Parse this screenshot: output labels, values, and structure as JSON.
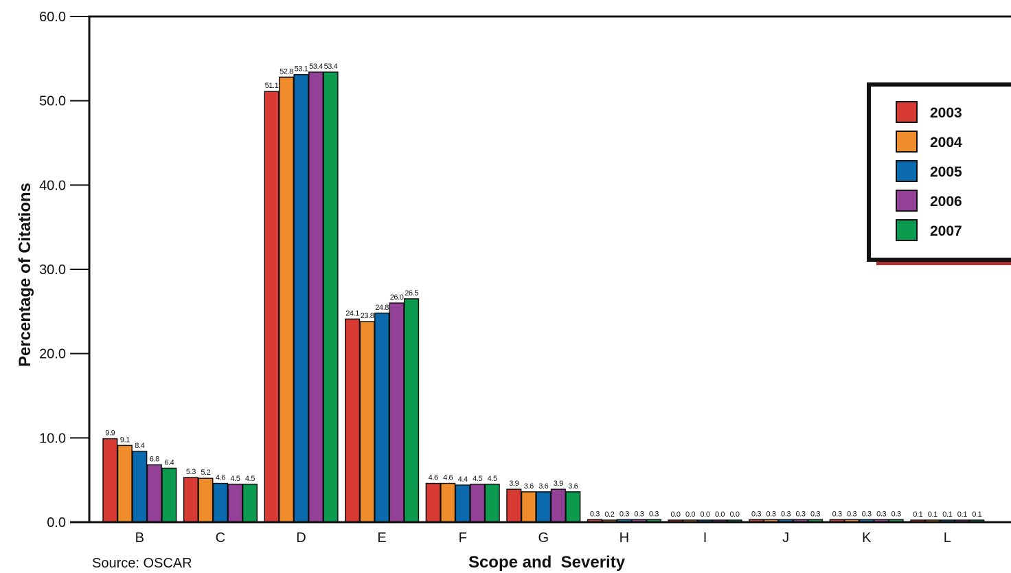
{
  "chart_data": {
    "type": "bar",
    "title": "",
    "xlabel": "Scope and  Severity",
    "ylabel": "Percentage of Citations",
    "ylim": [
      0,
      60
    ],
    "yticks": [
      "0.0",
      "10.0",
      "20.0",
      "30.0",
      "40.0",
      "50.0",
      "60.0"
    ],
    "categories": [
      "B",
      "C",
      "D",
      "E",
      "F",
      "G",
      "H",
      "I",
      "J",
      "K",
      "L"
    ],
    "series": [
      {
        "name": "2003",
        "color": "#d83a34",
        "values": [
          9.9,
          5.3,
          51.1,
          24.1,
          4.6,
          3.9,
          0.3,
          0.0,
          0.3,
          0.3,
          0.1
        ]
      },
      {
        "name": "2004",
        "color": "#ef8d2c",
        "values": [
          9.1,
          5.2,
          52.8,
          23.8,
          4.6,
          3.6,
          0.2,
          0.0,
          0.3,
          0.3,
          0.1
        ]
      },
      {
        "name": "2005",
        "color": "#0a6aad",
        "values": [
          8.4,
          4.6,
          53.1,
          24.8,
          4.4,
          3.6,
          0.3,
          0.0,
          0.3,
          0.3,
          0.1
        ]
      },
      {
        "name": "2006",
        "color": "#924196",
        "values": [
          6.8,
          4.5,
          53.4,
          26.0,
          4.5,
          3.9,
          0.3,
          0.0,
          0.3,
          0.3,
          0.1
        ]
      },
      {
        "name": "2007",
        "color": "#0b9a4e",
        "values": [
          6.4,
          4.5,
          53.4,
          26.5,
          4.5,
          3.6,
          0.3,
          0.0,
          0.3,
          0.3,
          0.1
        ]
      }
    ],
    "legend_position": "top-right",
    "grid": false
  },
  "source": "Source: OSCAR"
}
